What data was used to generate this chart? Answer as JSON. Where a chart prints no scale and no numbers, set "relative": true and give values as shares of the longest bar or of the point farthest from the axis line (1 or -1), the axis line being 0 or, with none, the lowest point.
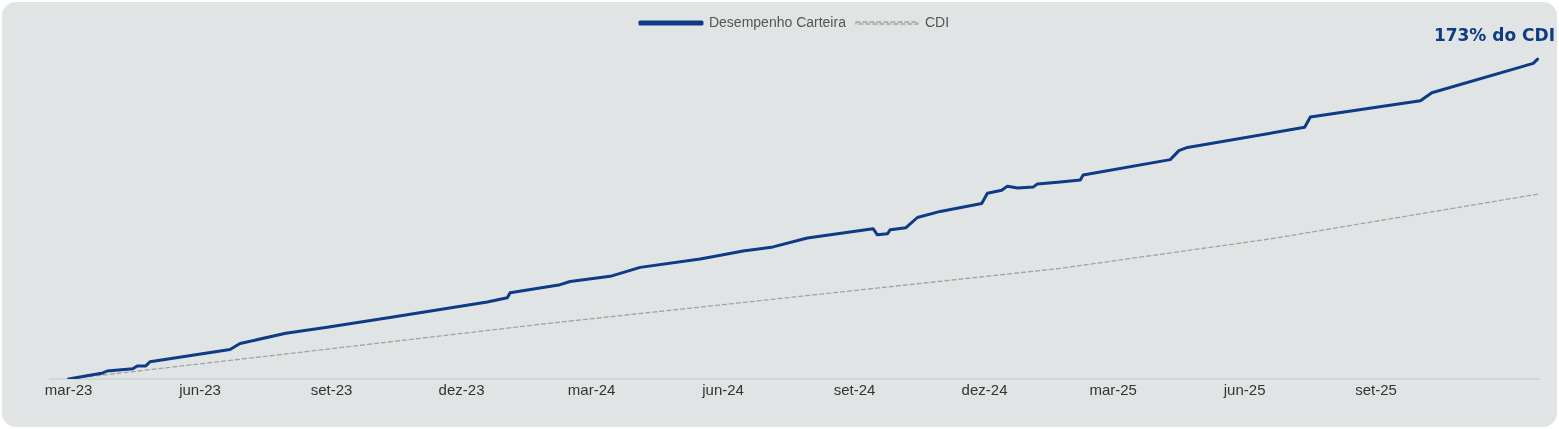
{
  "chart_data": {
    "type": "line",
    "relative": true,
    "legend": "top",
    "grid": false,
    "marker": "none",
    "xlim": [
      "2023-02-16",
      "2025-12-24"
    ],
    "xticks": [
      {
        "value": "2023-03-01",
        "label": "mar-23"
      },
      {
        "value": "2023-06-01",
        "label": "jun-23"
      },
      {
        "value": "2023-09-01",
        "label": "set-23"
      },
      {
        "value": "2023-12-01",
        "label": "dez-23"
      },
      {
        "value": "2024-03-01",
        "label": "mar-24"
      },
      {
        "value": "2024-06-01",
        "label": "jun-24"
      },
      {
        "value": "2024-09-01",
        "label": "set-24"
      },
      {
        "value": "2024-12-01",
        "label": "dez-24"
      },
      {
        "value": "2025-03-01",
        "label": "mar-25"
      },
      {
        "value": "2025-06-01",
        "label": "jun-25"
      },
      {
        "value": "2025-09-01",
        "label": "set-25"
      }
    ],
    "annotations": [
      {
        "text": "173% do CDI",
        "x": "2025-12-23",
        "y": 1
      }
    ],
    "series": [
      {
        "name": "Desempenho Carteira",
        "color": "#0d3b85",
        "line_style": "solid",
        "x": [
          "2023-03-01",
          "2023-03-25",
          "2023-03-28",
          "2023-04-15",
          "2023-04-18",
          "2023-04-24",
          "2023-04-27",
          "2023-06-22",
          "2023-06-29",
          "2023-07-31",
          "2023-08-29",
          "2023-10-14",
          "2023-12-19",
          "2024-01-02",
          "2024-01-04",
          "2024-02-08",
          "2024-02-15",
          "2024-03-14",
          "2024-04-04",
          "2024-05-16",
          "2024-06-15",
          "2024-07-06",
          "2024-07-30",
          "2024-09-14",
          "2024-09-17",
          "2024-09-24",
          "2024-09-26",
          "2024-10-07",
          "2024-10-15",
          "2024-10-31",
          "2024-11-29",
          "2024-12-03",
          "2024-12-13",
          "2024-12-17",
          "2024-12-24",
          "2025-01-04",
          "2025-01-07",
          "2025-01-23",
          "2025-02-06",
          "2025-02-08",
          "2025-04-10",
          "2025-04-16",
          "2025-04-22",
          "2025-07-13",
          "2025-07-17",
          "2025-10-02",
          "2025-10-10",
          "2025-12-20",
          "2025-12-23"
        ],
        "values": [
          0,
          0.019,
          0.025,
          0.032,
          0.041,
          0.041,
          0.054,
          0.092,
          0.111,
          0.143,
          0.162,
          0.194,
          0.241,
          0.254,
          0.27,
          0.295,
          0.305,
          0.321,
          0.349,
          0.375,
          0.4,
          0.413,
          0.441,
          0.47,
          0.451,
          0.454,
          0.467,
          0.473,
          0.505,
          0.524,
          0.549,
          0.581,
          0.59,
          0.603,
          0.597,
          0.6,
          0.61,
          0.616,
          0.622,
          0.638,
          0.686,
          0.714,
          0.724,
          0.787,
          0.819,
          0.87,
          0.895,
          0.987,
          1
        ]
      },
      {
        "name": "CDI",
        "color": "#a3a3a3",
        "line_style": "dashed",
        "x": [
          "2023-03-01",
          "2023-08-15",
          "2024-01-25",
          "2025-01-23",
          "2025-06-19",
          "2025-12-23"
        ],
        "values": [
          0,
          0.086,
          0.171,
          0.346,
          0.438,
          0.578
        ]
      }
    ]
  }
}
